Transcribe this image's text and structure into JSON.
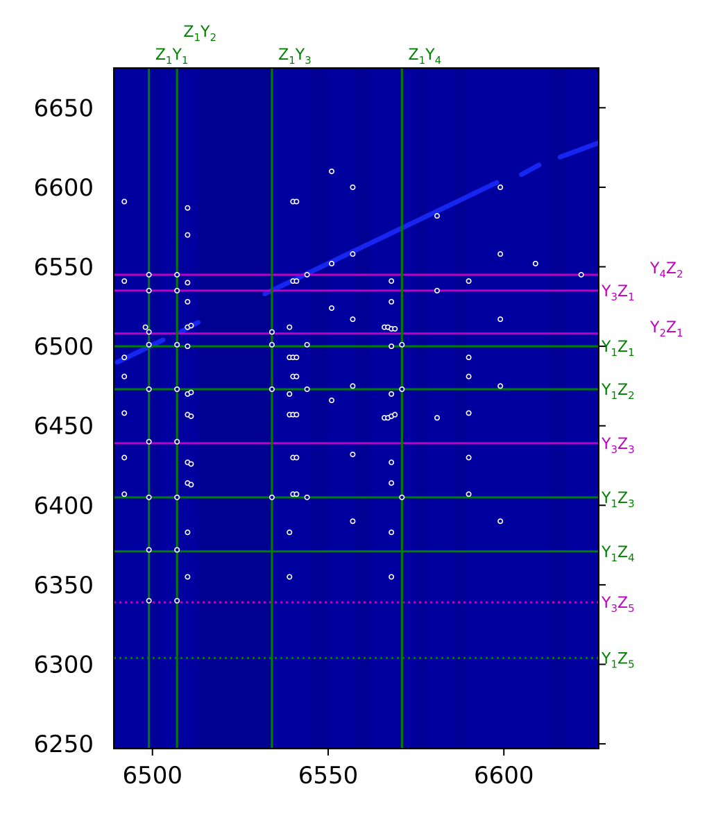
{
  "chart_data": {
    "type": "scatter",
    "xlim": [
      6489,
      6627
    ],
    "ylim": [
      6247,
      6675
    ],
    "xticks": [
      6500,
      6550,
      6600
    ],
    "yticks": [
      6250,
      6300,
      6350,
      6400,
      6450,
      6500,
      6550,
      6600,
      6650
    ],
    "grid": false,
    "background_colormap": "dark blue intensity map",
    "colors": {
      "background": "#00009e",
      "background_dark": "#00006e",
      "streak": "#1a2dff",
      "green": "#008000",
      "magenta": "#bf00bf",
      "point_fill": "#00009e",
      "point_edge": "#ffffff"
    },
    "vertical_lines": [
      {
        "x": 6499,
        "label": [
          "Z",
          "1",
          "Y",
          "1"
        ],
        "color": "green"
      },
      {
        "x": 6507,
        "label": [
          "Z",
          "1",
          "Y",
          "2"
        ],
        "color": "green"
      },
      {
        "x": 6534,
        "label": [
          "Z",
          "1",
          "Y",
          "3"
        ],
        "color": "green"
      },
      {
        "x": 6571,
        "label": [
          "Z",
          "1",
          "Y",
          "4"
        ],
        "color": "green"
      }
    ],
    "horizontal_lines": [
      {
        "y": 6545,
        "label": [
          "Y",
          "4",
          "Z",
          "2"
        ],
        "color": "magenta",
        "style": "solid"
      },
      {
        "y": 6535,
        "label": [
          "Y",
          "3",
          "Z",
          "1"
        ],
        "color": "magenta",
        "style": "solid"
      },
      {
        "y": 6508,
        "label": [
          "Y",
          "2",
          "Z",
          "1"
        ],
        "color": "magenta",
        "style": "solid"
      },
      {
        "y": 6500,
        "label": [
          "Y",
          "1",
          "Z",
          "1"
        ],
        "color": "green",
        "style": "solid"
      },
      {
        "y": 6473,
        "label": [
          "Y",
          "1",
          "Z",
          "2"
        ],
        "color": "green",
        "style": "solid"
      },
      {
        "y": 6439,
        "label": [
          "Y",
          "3",
          "Z",
          "3"
        ],
        "color": "magenta",
        "style": "solid"
      },
      {
        "y": 6405,
        "label": [
          "Y",
          "1",
          "Z",
          "3"
        ],
        "color": "green",
        "style": "solid"
      },
      {
        "y": 6371,
        "label": [
          "Y",
          "1",
          "Z",
          "4"
        ],
        "color": "green",
        "style": "solid"
      },
      {
        "y": 6339,
        "label": [
          "Y",
          "3",
          "Z",
          "5"
        ],
        "color": "magenta",
        "style": "dotted"
      },
      {
        "y": 6304,
        "label": [
          "Y",
          "1",
          "Z",
          "5"
        ],
        "color": "green",
        "style": "dotted"
      }
    ],
    "streak_segments": [
      [
        [
          6490,
          6490
        ],
        [
          6503,
          6504
        ]
      ],
      [
        [
          6508,
          6509
        ],
        [
          6513,
          6515
        ]
      ],
      [
        [
          6532,
          6533
        ],
        [
          6598,
          6603
        ]
      ],
      [
        [
          6605,
          6608
        ],
        [
          6610,
          6614
        ]
      ],
      [
        [
          6616,
          6619
        ],
        [
          6627,
          6628
        ]
      ]
    ],
    "points": [
      [
        6492,
        6591
      ],
      [
        6492,
        6541
      ],
      [
        6492,
        6493
      ],
      [
        6492,
        6481
      ],
      [
        6492,
        6458
      ],
      [
        6492,
        6430
      ],
      [
        6492,
        6407
      ],
      [
        6498,
        6512
      ],
      [
        6499,
        6509
      ],
      [
        6499,
        6545
      ],
      [
        6499,
        6535
      ],
      [
        6499,
        6501
      ],
      [
        6499,
        6473
      ],
      [
        6499,
        6440
      ],
      [
        6499,
        6405
      ],
      [
        6499,
        6372
      ],
      [
        6499,
        6340
      ],
      [
        6507,
        6545
      ],
      [
        6507,
        6535
      ],
      [
        6507,
        6501
      ],
      [
        6507,
        6473
      ],
      [
        6507,
        6440
      ],
      [
        6507,
        6405
      ],
      [
        6507,
        6372
      ],
      [
        6507,
        6340
      ],
      [
        6510,
        6587
      ],
      [
        6510,
        6570
      ],
      [
        6510,
        6540
      ],
      [
        6510,
        6528
      ],
      [
        6510,
        6512
      ],
      [
        6511,
        6513
      ],
      [
        6510,
        6500
      ],
      [
        6510,
        6470
      ],
      [
        6511,
        6471
      ],
      [
        6510,
        6457
      ],
      [
        6511,
        6456
      ],
      [
        6510,
        6427
      ],
      [
        6511,
        6426
      ],
      [
        6510,
        6414
      ],
      [
        6511,
        6413
      ],
      [
        6510,
        6383
      ],
      [
        6510,
        6355
      ],
      [
        6534,
        6509
      ],
      [
        6534,
        6501
      ],
      [
        6534,
        6473
      ],
      [
        6534,
        6405
      ],
      [
        6540,
        6591
      ],
      [
        6541,
        6591
      ],
      [
        6540,
        6541
      ],
      [
        6541,
        6541
      ],
      [
        6539,
        6512
      ],
      [
        6539,
        6493
      ],
      [
        6540,
        6493
      ],
      [
        6541,
        6493
      ],
      [
        6540,
        6481
      ],
      [
        6541,
        6481
      ],
      [
        6539,
        6470
      ],
      [
        6539,
        6457
      ],
      [
        6540,
        6457
      ],
      [
        6541,
        6457
      ],
      [
        6540,
        6430
      ],
      [
        6541,
        6430
      ],
      [
        6540,
        6407
      ],
      [
        6541,
        6407
      ],
      [
        6539,
        6383
      ],
      [
        6539,
        6355
      ],
      [
        6544,
        6545
      ],
      [
        6544,
        6501
      ],
      [
        6544,
        6473
      ],
      [
        6544,
        6405
      ],
      [
        6551,
        6610
      ],
      [
        6551,
        6552
      ],
      [
        6551,
        6524
      ],
      [
        6551,
        6466
      ],
      [
        6557,
        6600
      ],
      [
        6557,
        6558
      ],
      [
        6557,
        6517
      ],
      [
        6557,
        6475
      ],
      [
        6557,
        6432
      ],
      [
        6557,
        6390
      ],
      [
        6566,
        6512
      ],
      [
        6567,
        6512
      ],
      [
        6568,
        6511
      ],
      [
        6569,
        6511
      ],
      [
        6566,
        6455
      ],
      [
        6567,
        6455
      ],
      [
        6568,
        6456
      ],
      [
        6569,
        6457
      ],
      [
        6568,
        6541
      ],
      [
        6568,
        6528
      ],
      [
        6568,
        6500
      ],
      [
        6568,
        6470
      ],
      [
        6568,
        6427
      ],
      [
        6568,
        6414
      ],
      [
        6568,
        6383
      ],
      [
        6568,
        6355
      ],
      [
        6571,
        6501
      ],
      [
        6571,
        6473
      ],
      [
        6571,
        6405
      ],
      [
        6581,
        6582
      ],
      [
        6581,
        6535
      ],
      [
        6581,
        6455
      ],
      [
        6590,
        6541
      ],
      [
        6590,
        6493
      ],
      [
        6590,
        6481
      ],
      [
        6590,
        6458
      ],
      [
        6590,
        6430
      ],
      [
        6590,
        6407
      ],
      [
        6599,
        6600
      ],
      [
        6599,
        6558
      ],
      [
        6599,
        6517
      ],
      [
        6599,
        6475
      ],
      [
        6599,
        6390
      ],
      [
        6609,
        6552
      ],
      [
        6622,
        6545
      ]
    ]
  }
}
